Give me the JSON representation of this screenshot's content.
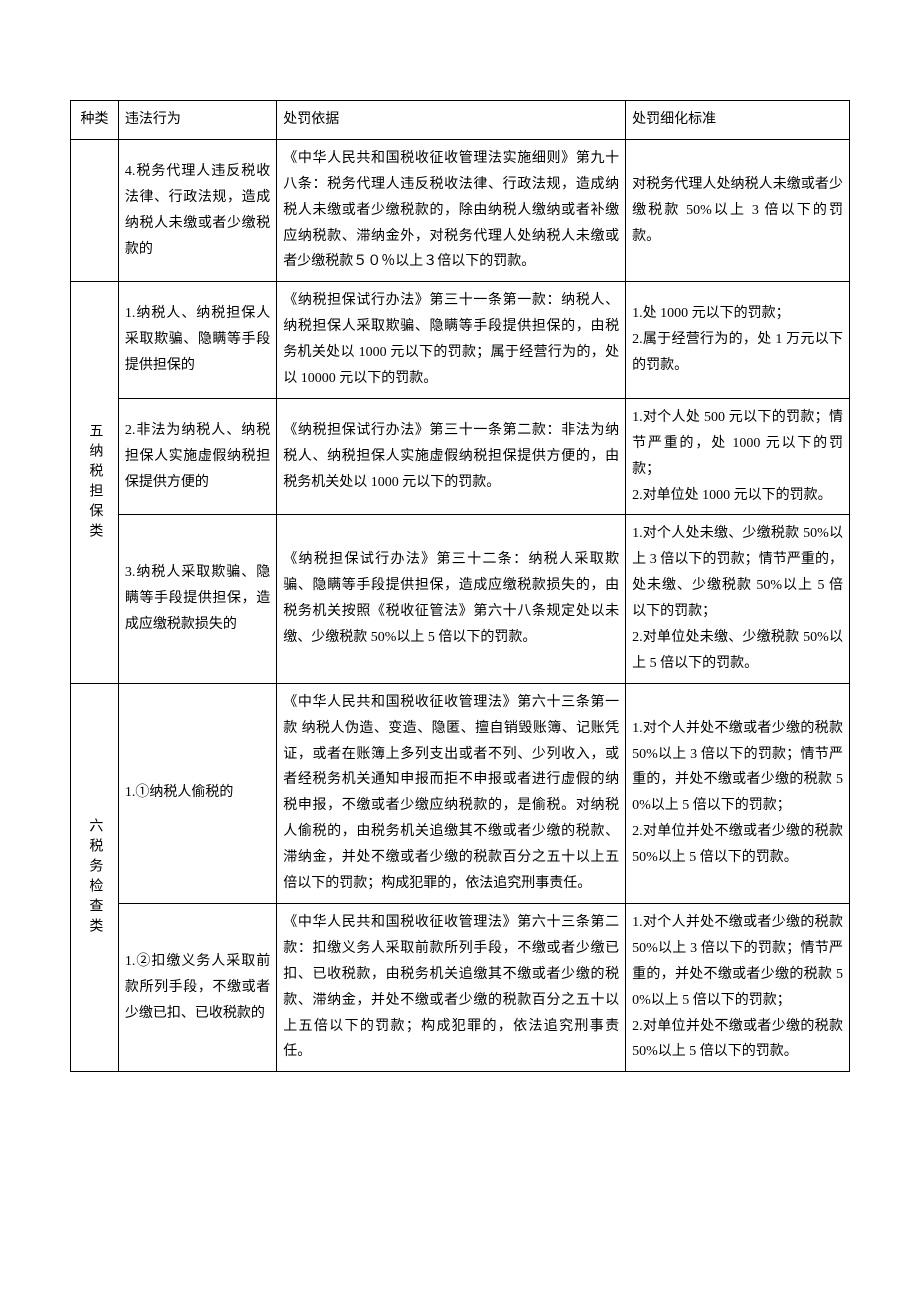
{
  "headers": {
    "category": "种类",
    "violation": "违法行为",
    "basis": "处罚依据",
    "standard": "处罚细化标准"
  },
  "rows": [
    {
      "category": "",
      "violation": "4.税务代理人违反税收法律、行政法规，造成纳税人未缴或者少缴税款的",
      "basis": "《中华人民共和国税收征收管理法实施细则》第九十八条：税务代理人违反税收法律、行政法规，造成纳税人未缴或者少缴税款的，除由纳税人缴纳或者补缴应纳税款、滞纳金外，对税务代理人处纳税人未缴或者少缴税款５０％以上３倍以下的罚款。",
      "standard": "对税务代理人处纳税人未缴或者少缴税款 50%以上 3 倍以下的罚款。"
    },
    {
      "category": "五纳税担保类",
      "violation": "1.纳税人、纳税担保人采取欺骗、隐瞒等手段提供担保的",
      "basis": "《纳税担保试行办法》第三十一条第一款：纳税人、纳税担保人采取欺骗、隐瞒等手段提供担保的，由税务机关处以 1000 元以下的罚款；属于经营行为的，处以 10000 元以下的罚款。",
      "standard": "1.处 1000 元以下的罚款；\n2.属于经营行为的，处 1 万元以下的罚款。"
    },
    {
      "violation": "2.非法为纳税人、纳税担保人实施虚假纳税担保提供方便的",
      "basis": "《纳税担保试行办法》第三十一条第二款：非法为纳税人、纳税担保人实施虚假纳税担保提供方便的，由税务机关处以 1000 元以下的罚款。",
      "standard": "1.对个人处 500 元以下的罚款；情节严重的，处 1000 元以下的罚款；\n2.对单位处 1000 元以下的罚款。"
    },
    {
      "violation": "3.纳税人采取欺骗、隐瞒等手段提供担保，造成应缴税款损失的",
      "basis": "《纳税担保试行办法》第三十二条：纳税人采取欺骗、隐瞒等手段提供担保，造成应缴税款损失的，由税务机关按照《税收征管法》第六十八条规定处以未缴、少缴税款 50%以上 5 倍以下的罚款。",
      "standard": "1.对个人处未缴、少缴税款 50%以上 3 倍以下的罚款；情节严重的，处未缴、少缴税款 50%以上 5 倍以下的罚款；\n2.对单位处未缴、少缴税款 50%以上 5 倍以下的罚款。"
    },
    {
      "category": "六税务检查类",
      "violation": "1.①纳税人偷税的",
      "basis": "《中华人民共和国税收征收管理法》第六十三条第一款 纳税人伪造、变造、隐匿、擅自销毁账簿、记账凭证，或者在账簿上多列支出或者不列、少列收入，或者经税务机关通知申报而拒不申报或者进行虚假的纳税申报，不缴或者少缴应纳税款的，是偷税。对纳税人偷税的，由税务机关追缴其不缴或者少缴的税款、滞纳金，并处不缴或者少缴的税款百分之五十以上五倍以下的罚款；构成犯罪的，依法追究刑事责任。",
      "standard": "1.对个人并处不缴或者少缴的税款 50%以上 3 倍以下的罚款；情节严重的，并处不缴或者少缴的税款 50%以上 5 倍以下的罚款；\n2.对单位并处不缴或者少缴的税款 50%以上 5 倍以下的罚款。"
    },
    {
      "violation": "1.②扣缴义务人采取前款所列手段，不缴或者少缴已扣、已收税款的",
      "basis": "《中华人民共和国税收征收管理法》第六十三条第二款：扣缴义务人采取前款所列手段，不缴或者少缴已扣、已收税款，由税务机关追缴其不缴或者少缴的税款、滞纳金，并处不缴或者少缴的税款百分之五十以上五倍以下的罚款；构成犯罪的，依法追究刑事责任。",
      "standard": "1.对个人并处不缴或者少缴的税款 50%以上 3 倍以下的罚款；情节严重的，并处不缴或者少缴的税款 50%以上 5 倍以下的罚款；\n2.对单位并处不缴或者少缴的税款 50%以上 5 倍以下的罚款。"
    }
  ]
}
